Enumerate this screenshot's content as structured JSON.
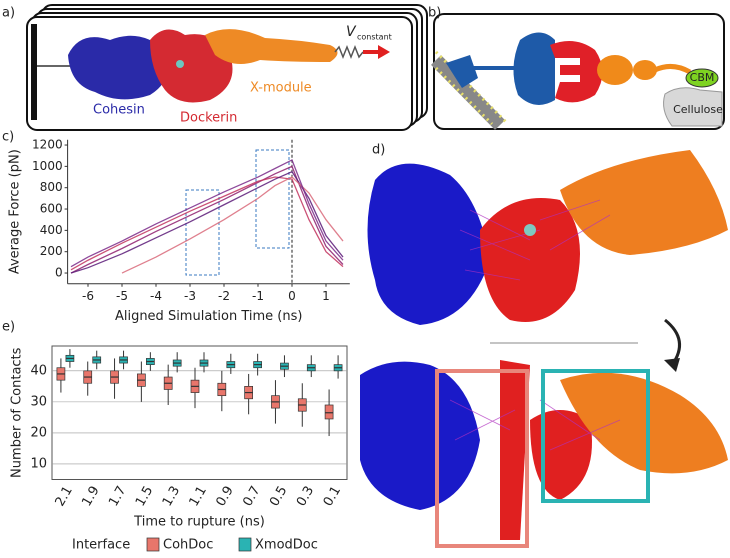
{
  "panel_labels": [
    "a)",
    "b)",
    "c)",
    "d)",
    "e)"
  ],
  "panel_a": {
    "labels": [
      "Cohesin",
      "Dockerin",
      "X-module"
    ],
    "velocity": "V",
    "velocity_subscript": "constant"
  },
  "panel_b": {
    "labels": [
      "CBM",
      "Cellulose"
    ]
  },
  "chart_data": [
    {
      "type": "line",
      "xlabel": "Aligned Simulation Time (ns)",
      "ylabel": "Average Force (pN)",
      "x": [
        -6.5,
        -6,
        -5,
        -4,
        -3,
        -2,
        -1,
        -0.5,
        0,
        0.5,
        1,
        1.5
      ],
      "series": [
        {
          "color": "#8e1f6e",
          "values": [
            0,
            80,
            230,
            390,
            540,
            690,
            850,
            930,
            1000,
            600,
            250,
            80
          ]
        },
        {
          "color": "#c2325e",
          "values": [
            30,
            120,
            280,
            430,
            580,
            720,
            860,
            900,
            880,
            500,
            200,
            60
          ]
        },
        {
          "color": "#5a1a78",
          "values": [
            0,
            50,
            180,
            330,
            480,
            640,
            800,
            880,
            950,
            700,
            350,
            150
          ]
        },
        {
          "color": "#d96a7a",
          "values": [
            null,
            null,
            0,
            150,
            320,
            500,
            700,
            820,
            900,
            750,
            500,
            300
          ]
        },
        {
          "color": "#7a2a8a",
          "values": [
            60,
            150,
            300,
            460,
            610,
            760,
            900,
            980,
            1060,
            650,
            300,
            120
          ]
        }
      ],
      "xlim": [
        -6.6,
        1.7
      ],
      "ylim": [
        -100,
        1250
      ],
      "xticks": [
        -6,
        -5,
        -4,
        -3,
        -2,
        -1,
        0,
        1
      ],
      "yticks": [
        0,
        200,
        400,
        600,
        800,
        1000,
        1200
      ]
    },
    {
      "type": "box",
      "xlabel": "Time to rupture (ns)",
      "ylabel": "Number of Contacts",
      "categories": [
        "2.1",
        "1.9",
        "1.7",
        "1.5",
        "1.3",
        "1.1",
        "0.9",
        "0.7",
        "0.5",
        "0.3",
        "0.1"
      ],
      "legend_title": "Interface",
      "grid": true,
      "series": [
        {
          "name": "CohDoc",
          "color": "#e8766b",
          "median": [
            39,
            38,
            38,
            37,
            36,
            35,
            34,
            33,
            30,
            29,
            26.5
          ],
          "q1": [
            37,
            36,
            36,
            35,
            34,
            33,
            32,
            31,
            28,
            27,
            24.5
          ],
          "q3": [
            41,
            40,
            40,
            39,
            38,
            37,
            36,
            35,
            32,
            31,
            29
          ],
          "whisker_low": [
            33,
            32,
            31,
            30,
            29,
            28,
            27,
            26,
            23,
            22,
            19
          ],
          "whisker_high": [
            44,
            43,
            44,
            43,
            42,
            41,
            40,
            39,
            37,
            36,
            34
          ]
        },
        {
          "name": "XmodDoc",
          "color": "#2ab3b3",
          "median": [
            44,
            43.5,
            43.5,
            43,
            42.5,
            42.5,
            42,
            42,
            41.5,
            41,
            41
          ],
          "q1": [
            43,
            42.5,
            42.5,
            42,
            41.5,
            41.5,
            41,
            41,
            40.5,
            40,
            40
          ],
          "q3": [
            45,
            44.5,
            44.5,
            44,
            43.5,
            43.5,
            43,
            43,
            42.5,
            42,
            42
          ],
          "whisker_low": [
            41,
            40.5,
            40.5,
            40,
            39.5,
            39.5,
            39,
            38.5,
            38,
            38,
            37.5
          ],
          "whisker_high": [
            47,
            46.5,
            46.5,
            46,
            46,
            46,
            45.5,
            45.5,
            45,
            45,
            45
          ]
        }
      ],
      "ylim": [
        5,
        48
      ],
      "yticks": [
        10,
        20,
        30,
        40
      ]
    }
  ]
}
